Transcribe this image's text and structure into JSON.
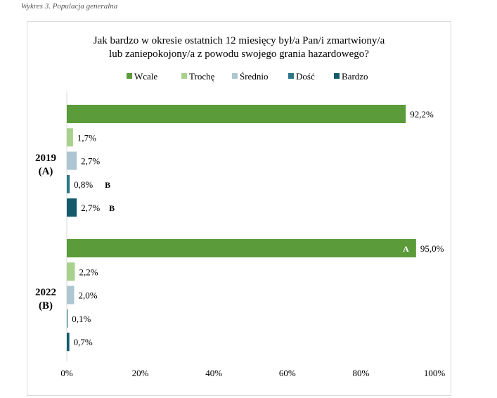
{
  "caption": "Wykres 3. Populacja generalna",
  "chart_data": {
    "type": "bar",
    "orientation": "horizontal",
    "title_lines": [
      "Jak bardzo w okresie ostatnich 12 miesięcy był/a Pan/i zmartwiony/a",
      "lub zaniepokojony/a z powodu swojego grania hazardowego?"
    ],
    "legend": [
      {
        "name": "Wcale",
        "color": "#5b9b3a"
      },
      {
        "name": "Trochę",
        "color": "#a9d18e"
      },
      {
        "name": "Średnio",
        "color": "#adc6d1"
      },
      {
        "name": "Dość",
        "color": "#2e7789"
      },
      {
        "name": "Bardzo",
        "color": "#135a6d"
      }
    ],
    "legend_position": "top",
    "groups": [
      {
        "label": [
          "2019",
          "(A)"
        ],
        "values": [
          92.2,
          1.7,
          2.7,
          0.8,
          2.7
        ],
        "labels": [
          "92,2%",
          "1,7%",
          "2,7%",
          "0,8%",
          "2,7%"
        ],
        "annotations": [
          "",
          "",
          "",
          "B",
          "B"
        ],
        "inside": [
          "",
          "",
          "",
          "",
          ""
        ]
      },
      {
        "label": [
          "2022",
          "(B)"
        ],
        "values": [
          95.0,
          2.2,
          2.0,
          0.1,
          0.7
        ],
        "labels": [
          "95,0%",
          "2,2%",
          "2,0%",
          "0,1%",
          "0,7%"
        ],
        "annotations": [
          "",
          "",
          "",
          "",
          ""
        ],
        "inside": [
          "A",
          "",
          "",
          "",
          ""
        ]
      }
    ],
    "xlim": [
      0,
      100
    ],
    "xticks": [
      "0%",
      "20%",
      "40%",
      "60%",
      "80%",
      "100%"
    ],
    "grid": false
  }
}
